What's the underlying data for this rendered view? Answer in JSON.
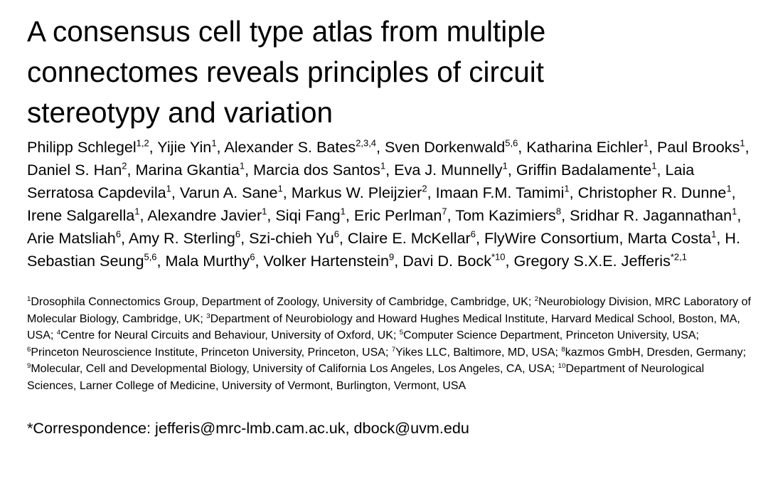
{
  "title": "A consensus cell type atlas from multiple connectomes reveals principles of circuit stereotypy and variation",
  "authors": [
    {
      "name": "Philipp Schlegel",
      "sup": "1,2"
    },
    {
      "name": "Yijie Yin",
      "sup": "1"
    },
    {
      "name": "Alexander S. Bates",
      "sup": "2,3,4"
    },
    {
      "name": "Sven Dorkenwald",
      "sup": "5,6"
    },
    {
      "name": "Katharina Eichler",
      "sup": "1"
    },
    {
      "name": "Paul Brooks",
      "sup": "1"
    },
    {
      "name": "Daniel S. Han",
      "sup": "2"
    },
    {
      "name": "Marina Gkantia",
      "sup": "1"
    },
    {
      "name": "Marcia dos Santos",
      "sup": "1"
    },
    {
      "name": "Eva J. Munnelly",
      "sup": "1"
    },
    {
      "name": "Griffin Badalamente",
      "sup": "1"
    },
    {
      "name": "Laia Serratosa Capdevila",
      "sup": "1"
    },
    {
      "name": "Varun A. Sane",
      "sup": "1"
    },
    {
      "name": "Markus W. Pleijzier",
      "sup": "2"
    },
    {
      "name": "Imaan F.M. Tamimi",
      "sup": "1"
    },
    {
      "name": "Christopher R. Dunne",
      "sup": "1"
    },
    {
      "name": "Irene Salgarella",
      "sup": "1"
    },
    {
      "name": "Alexandre Javier",
      "sup": "1"
    },
    {
      "name": "Siqi Fang",
      "sup": "1"
    },
    {
      "name": "Eric Perlman",
      "sup": "7"
    },
    {
      "name": "Tom Kazimiers",
      "sup": "8"
    },
    {
      "name": "Sridhar R. Jagannathan",
      "sup": "1"
    },
    {
      "name": "Arie Matsliah",
      "sup": "6"
    },
    {
      "name": "Amy R. Sterling",
      "sup": "6"
    },
    {
      "name": "Szi-chieh Yu",
      "sup": "6"
    },
    {
      "name": "Claire E. McKellar",
      "sup": "6"
    },
    {
      "name": "FlyWire Consortium",
      "sup": ""
    },
    {
      "name": "Marta Costa",
      "sup": "1"
    },
    {
      "name": "H. Sebastian Seung",
      "sup": "5,6"
    },
    {
      "name": "Mala Murthy",
      "sup": "6"
    },
    {
      "name": "Volker Hartenstein",
      "sup": "9"
    },
    {
      "name": "Davi D. Bock",
      "sup": "*10"
    },
    {
      "name": "Gregory S.X.E. Jefferis",
      "sup": "*2,1"
    }
  ],
  "affiliations": [
    {
      "num": "1",
      "text": "Drosophila Connectomics Group, Department of Zoology, University of Cambridge, Cambridge, UK"
    },
    {
      "num": "2",
      "text": "Neurobiology Division, MRC Laboratory of Molecular Biology, Cambridge, UK"
    },
    {
      "num": "3",
      "text": "Department of Neurobiology and Howard Hughes Medical Institute, Harvard Medical School, Boston, MA, USA"
    },
    {
      "num": "4",
      "text": "Centre for Neural Circuits and Behaviour, University of Oxford, UK"
    },
    {
      "num": "5",
      "text": "Computer Science Department, Princeton University, USA"
    },
    {
      "num": "6",
      "text": "Princeton Neuroscience Institute, Princeton University, Princeton, USA"
    },
    {
      "num": "7",
      "text": "Yikes LLC, Baltimore, MD, USA"
    },
    {
      "num": "8",
      "text": "kazmos GmbH, Dresden, Germany"
    },
    {
      "num": "9",
      "text": "Molecular, Cell and Developmental Biology, University of California Los Angeles, Los Angeles, CA, USA"
    },
    {
      "num": "10",
      "text": "Department of Neurological Sciences, Larner College of Medicine, University of Vermont, Burlington, Vermont, USA"
    }
  ],
  "correspondence": "*Correspondence: jefferis@mrc-lmb.cam.ac.uk, dbock@uvm.edu"
}
